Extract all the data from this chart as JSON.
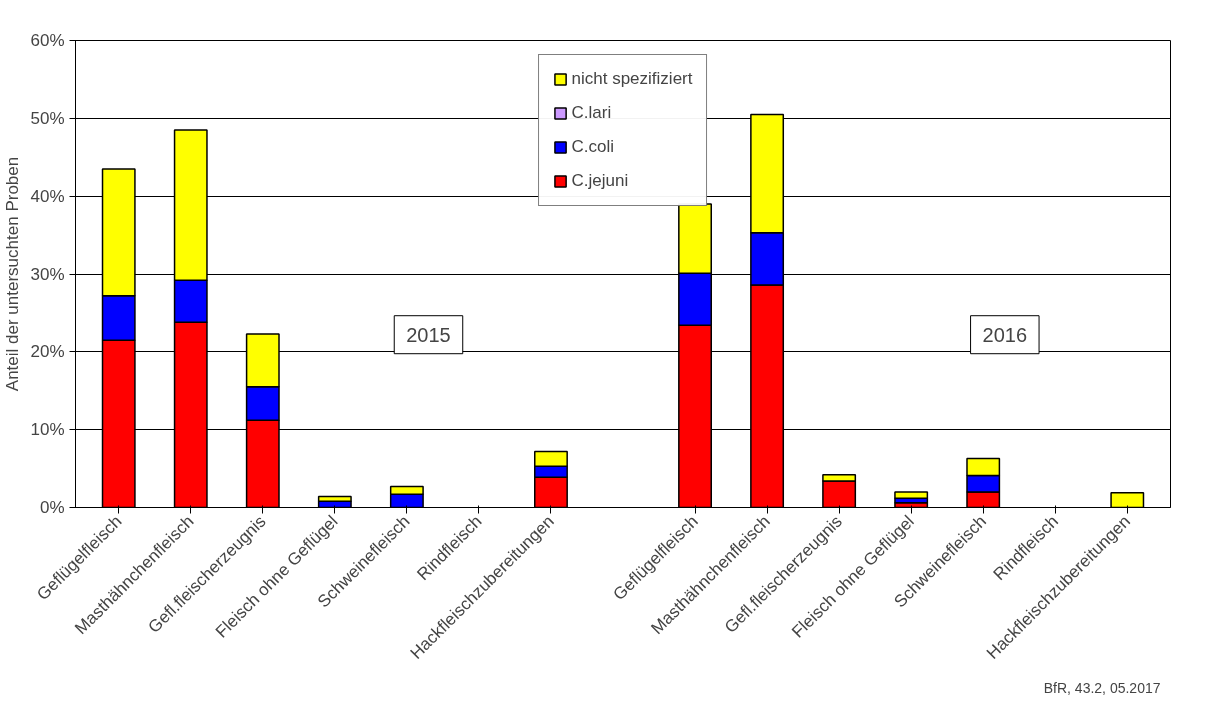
{
  "chart_data": {
    "type": "bar",
    "stacked": true,
    "ylabel": "Anteil der untersuchten Proben",
    "categories": [
      "Geflügelfleisch",
      "Masthähnchenfleisch",
      "Gefl.fleischerzeugnis",
      "Fleisch ohne Geflügel",
      "Schweinefleisch",
      "Rindfleisch",
      "Hackfleischzubereitungen",
      null,
      "Geflügelfleisch",
      "Masthähnchenfleisch",
      "Gefl.fleischerzeugnis",
      "Fleisch ohne Geflügel",
      "Schweinefleisch",
      "Rindfleisch",
      "Hackfleischzubereitungen"
    ],
    "series": [
      {
        "name": "C.jejuni",
        "color": "#ff0000",
        "values": [
          21.5,
          23.8,
          11.2,
          0,
          0,
          0,
          3.9,
          null,
          23.4,
          28.6,
          3.4,
          0.6,
          2.0,
          0,
          0
        ]
      },
      {
        "name": "C.coli",
        "color": "#0000ff",
        "values": [
          5.7,
          5.4,
          4.3,
          0.8,
          1.7,
          0,
          1.4,
          null,
          6.7,
          6.7,
          0,
          0.6,
          2.1,
          0,
          0
        ]
      },
      {
        "name": "C.lari",
        "color": "#cc99ff",
        "values": [
          0,
          0,
          0,
          0,
          0,
          0,
          0,
          null,
          0,
          0,
          0,
          0,
          0,
          0,
          0
        ]
      },
      {
        "name": "nicht spezifiziert",
        "color": "#ffff00",
        "values": [
          16.3,
          19.3,
          6.8,
          0.6,
          1.0,
          0,
          1.9,
          null,
          8.9,
          15.2,
          0.8,
          0.8,
          2.2,
          0,
          1.9
        ]
      }
    ],
    "ylim": [
      0,
      60
    ],
    "yticks": [
      {
        "value": 0,
        "label": "0%"
      },
      {
        "value": 10,
        "label": "10%"
      },
      {
        "value": 20,
        "label": "20%"
      },
      {
        "value": 30,
        "label": "30%"
      },
      {
        "value": 40,
        "label": "40%"
      },
      {
        "value": 50,
        "label": "50%"
      },
      {
        "value": 60,
        "label": "60%"
      }
    ],
    "grid": "y",
    "legend": "top",
    "annotations": [
      "2015",
      "2016",
      "BfR, 43.2, 05.2017"
    ]
  }
}
